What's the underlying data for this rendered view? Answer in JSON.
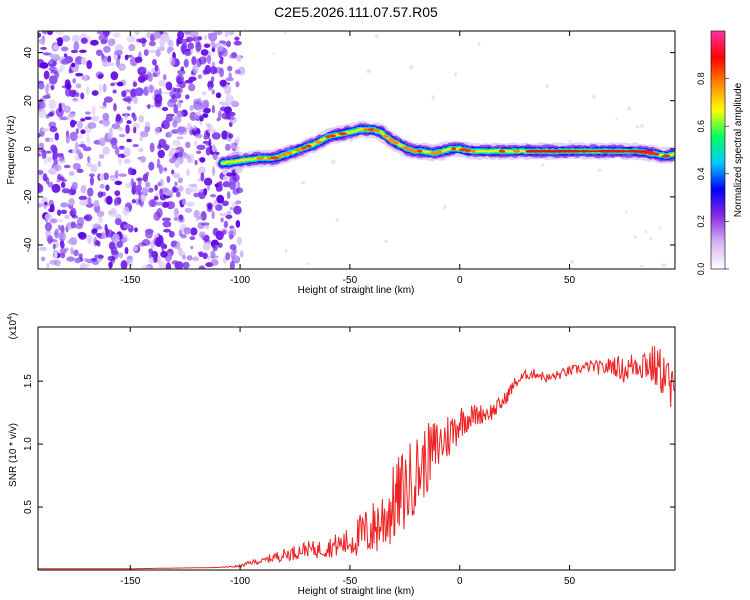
{
  "chart_data": [
    {
      "type": "heatmap",
      "title": "C2E5.2026.111.07.57.R05",
      "xlabel": "Height of straight line (km)",
      "ylabel": "Frequency (Hz)",
      "xlim": [
        -192,
        98
      ],
      "ylim": [
        -50,
        49
      ],
      "xticks": [
        -150,
        -100,
        -50,
        0,
        50
      ],
      "yticks": [
        -40,
        -20,
        0,
        20,
        40
      ],
      "noise_region_x": [
        -192,
        -101
      ],
      "ridge": {
        "x": [
          -108,
          -100,
          -92,
          -85,
          -78,
          -72,
          -66,
          -60,
          -55,
          -50,
          -45,
          -40,
          -36,
          -32,
          -28,
          -24,
          -20,
          -16,
          -12,
          -8,
          -4,
          0,
          5,
          10,
          20,
          30,
          40,
          50,
          60,
          70,
          80,
          88,
          94,
          98
        ],
        "freq": [
          -6,
          -5,
          -4,
          -4,
          -2,
          0,
          2,
          5,
          6,
          7,
          8,
          8,
          7,
          4,
          2,
          0,
          -1,
          -1,
          -2,
          -1,
          0,
          0,
          -1,
          -1,
          -1,
          -1,
          -1,
          -1,
          -1,
          -1,
          -1,
          -2,
          -3,
          -2
        ]
      },
      "colorbar": {
        "label": "Normalized spectral amplitude",
        "ticks": [
          "0.0",
          "0.2",
          "0.4",
          "0.6",
          "0.8"
        ],
        "range": [
          0,
          1
        ],
        "colors": [
          "#ffffff",
          "#d9b3f5",
          "#8a2be2",
          "#0000ff",
          "#00c8ff",
          "#00ff66",
          "#ffff00",
          "#ff8800",
          "#ff0000",
          "#ff33aa"
        ]
      }
    },
    {
      "type": "line",
      "xlabel": "Height of straight line (km)",
      "ylabel": "SNR (10 * v/v)",
      "exponent_label": "(x10",
      "exponent_power": "4",
      "exponent_close": ")",
      "xlim": [
        -192,
        98
      ],
      "ylim": [
        0,
        1.93
      ],
      "xticks": [
        -150,
        -100,
        -50,
        0,
        50
      ],
      "yticks": [
        0.5,
        1.0,
        1.5
      ],
      "ytick_labels": [
        "0.5",
        "1.0",
        "1.5"
      ],
      "series": [
        {
          "name": "SNR",
          "color": "#ee2222",
          "x": [
            -192,
            -150,
            -110,
            -100,
            -95,
            -90,
            -85,
            -80,
            -75,
            -70,
            -65,
            -60,
            -55,
            -50,
            -45,
            -40,
            -35,
            -30,
            -27,
            -24,
            -21,
            -18,
            -15,
            -12,
            -9,
            -6,
            -3,
            0,
            5,
            10,
            15,
            20,
            25,
            30,
            35,
            40,
            45,
            50,
            55,
            60,
            65,
            70,
            75,
            80,
            85,
            90,
            94,
            98
          ],
          "y": [
            0.01,
            0.01,
            0.02,
            0.03,
            0.06,
            0.07,
            0.1,
            0.12,
            0.14,
            0.17,
            0.16,
            0.18,
            0.2,
            0.22,
            0.28,
            0.32,
            0.4,
            0.52,
            0.6,
            0.65,
            0.75,
            0.8,
            0.88,
            0.95,
            1.0,
            1.05,
            1.1,
            1.18,
            1.22,
            1.24,
            1.26,
            1.34,
            1.48,
            1.55,
            1.56,
            1.52,
            1.55,
            1.58,
            1.6,
            1.62,
            1.6,
            1.63,
            1.58,
            1.64,
            1.65,
            1.6,
            1.55,
            1.3
          ],
          "noise": [
            0.0,
            0.0,
            0.0,
            0.01,
            0.02,
            0.02,
            0.04,
            0.05,
            0.06,
            0.06,
            0.07,
            0.08,
            0.1,
            0.12,
            0.18,
            0.22,
            0.28,
            0.32,
            0.34,
            0.34,
            0.32,
            0.3,
            0.28,
            0.25,
            0.22,
            0.2,
            0.18,
            0.14,
            0.1,
            0.08,
            0.07,
            0.06,
            0.05,
            0.04,
            0.04,
            0.04,
            0.04,
            0.04,
            0.04,
            0.05,
            0.06,
            0.08,
            0.1,
            0.12,
            0.16,
            0.18,
            0.2,
            0.24
          ]
        }
      ]
    }
  ]
}
